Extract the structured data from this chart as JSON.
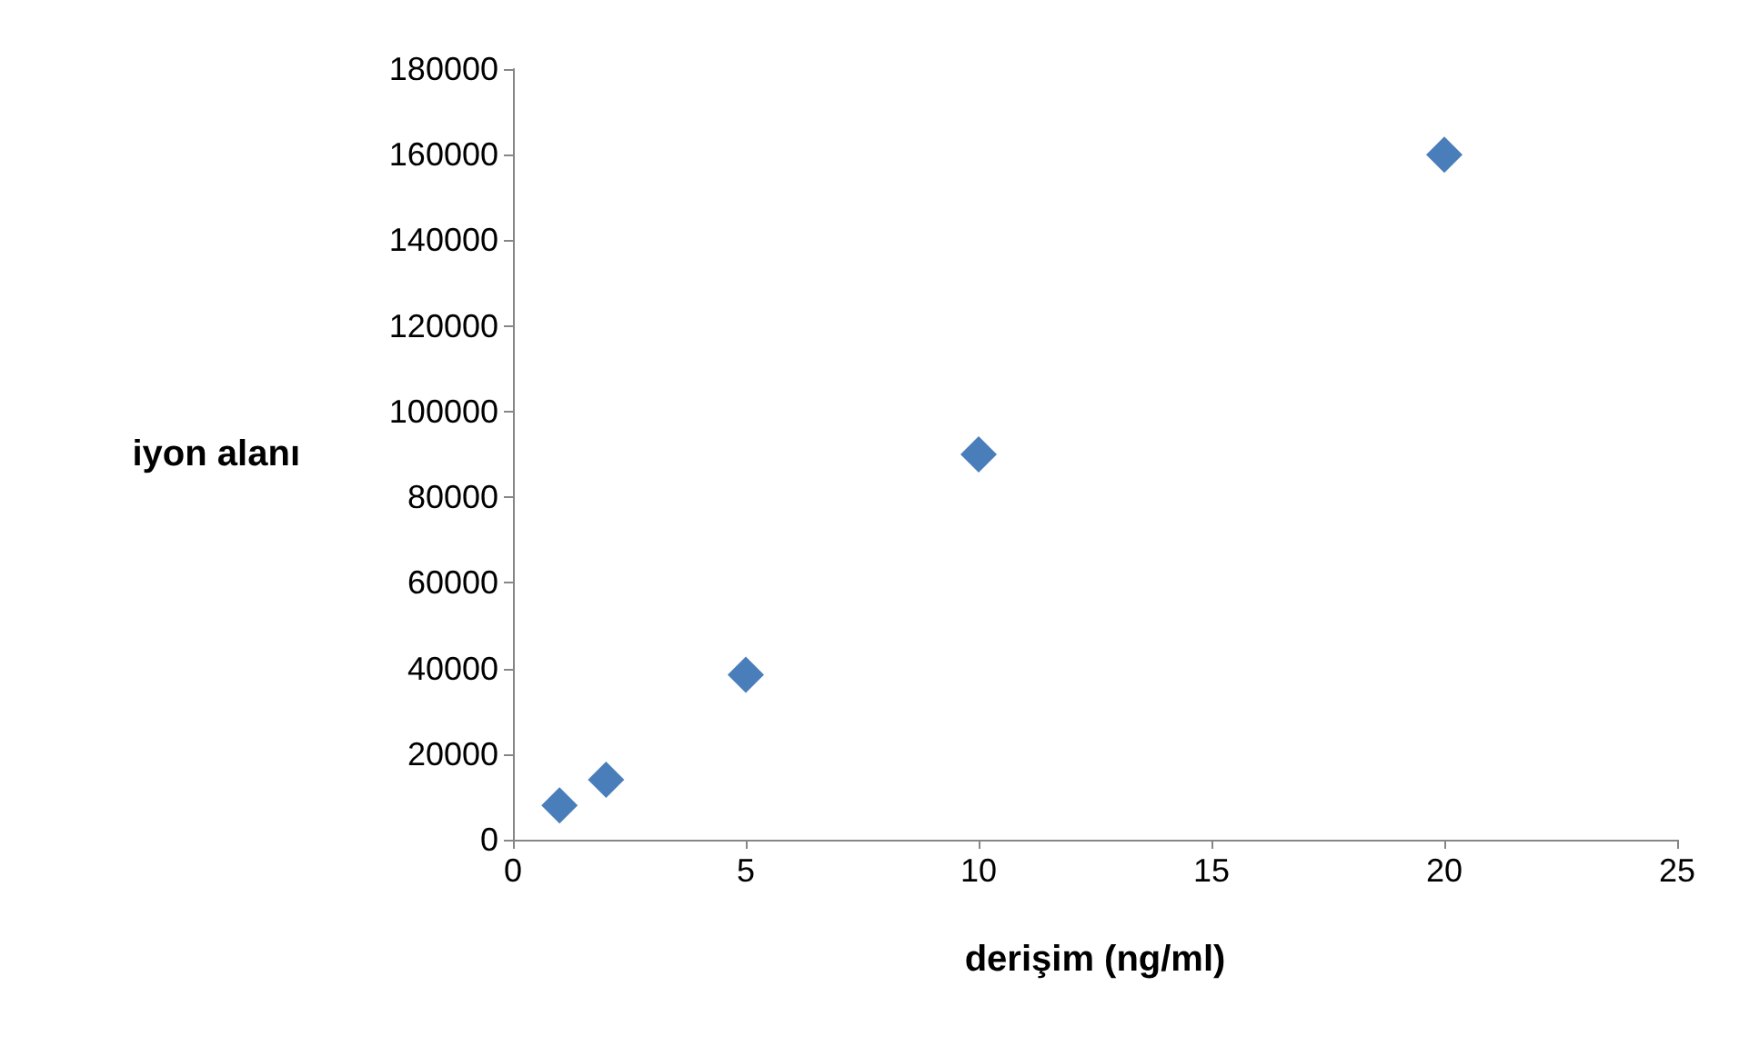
{
  "chart_data": {
    "type": "scatter",
    "xlabel": "derişim (ng/ml)",
    "ylabel": "iyon alanı",
    "x": [
      1,
      2,
      5,
      10,
      20
    ],
    "series": [
      {
        "color": "#4a7ebb",
        "values": [
          8000,
          14000,
          38500,
          90000,
          160000
        ]
      }
    ],
    "xlim": [
      0,
      25
    ],
    "xticks": [
      0,
      5,
      10,
      15,
      20,
      25
    ],
    "ylim": [
      0,
      180000
    ],
    "yticks": [
      0,
      20000,
      40000,
      60000,
      80000,
      100000,
      120000,
      140000,
      160000,
      180000
    ],
    "grid": false,
    "marker": "diamond"
  }
}
